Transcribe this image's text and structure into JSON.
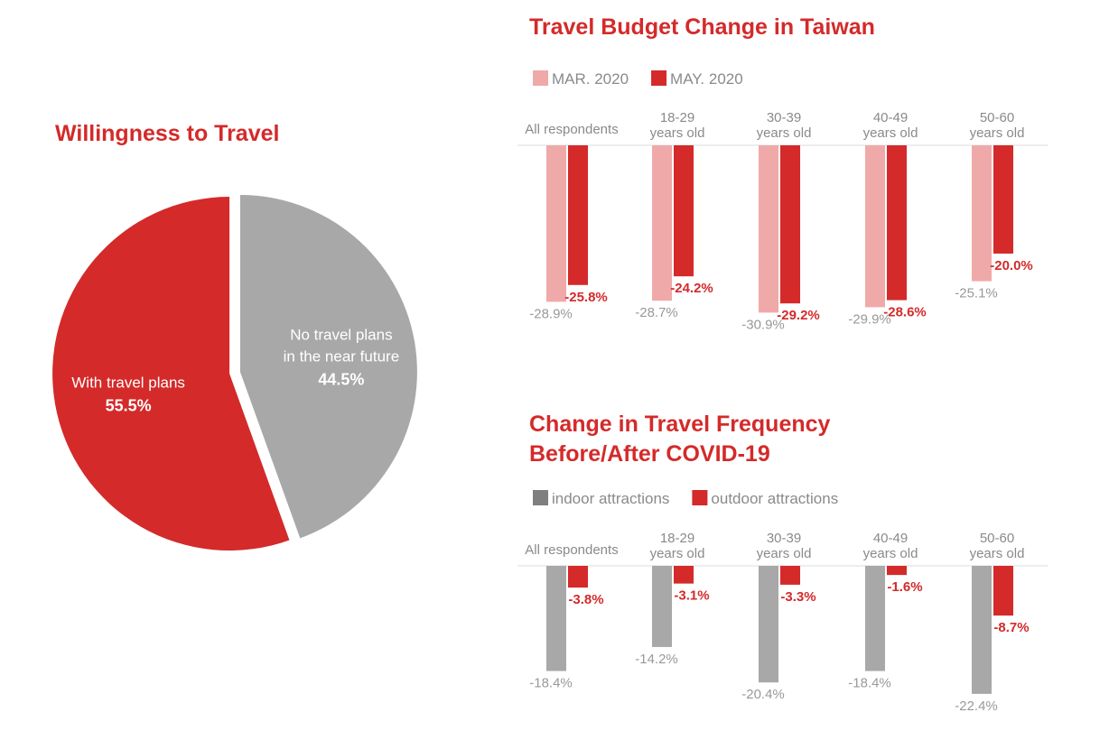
{
  "chart_data": [
    {
      "type": "pie",
      "title": "Willingness to Travel",
      "slices": [
        {
          "name": "No travel plans in the near future",
          "label_lines": [
            "No travel plans",
            "in the near future"
          ],
          "value": 44.5,
          "value_label": "44.5%",
          "color": "#a8a8a8"
        },
        {
          "name": "With travel plans",
          "label_lines": [
            "With travel plans"
          ],
          "value": 55.5,
          "value_label": "55.5%",
          "color": "#d42a2a"
        }
      ]
    },
    {
      "type": "bar",
      "title": "Travel Budget Change in Taiwan",
      "categories": [
        "All respondents",
        "18-29|years old",
        "30-39|years old",
        "40-49|years old",
        "50-60|years old"
      ],
      "series": [
        {
          "name": "MAR. 2020",
          "color": "#f0a9a9",
          "label_color": "#999999",
          "values": [
            -28.9,
            -28.7,
            -30.9,
            -29.9,
            -25.1
          ],
          "labels": [
            "-28.9%",
            "-28.7%",
            "-30.9%",
            "-29.9%",
            "-25.1%"
          ]
        },
        {
          "name": "MAY. 2020",
          "color": "#d42a2a",
          "label_color": "#d42a2a",
          "values": [
            -25.8,
            -24.2,
            -29.2,
            -28.6,
            -20.0
          ],
          "labels": [
            "-25.8%",
            "-24.2%",
            "-29.2%",
            "-28.6%",
            "-20.0%"
          ]
        }
      ],
      "ylim": [
        -32,
        0
      ]
    },
    {
      "type": "bar",
      "title": "Change in Travel Frequency|Before/After COVID-19",
      "categories": [
        "All respondents",
        "18-29|years old",
        "30-39|years old",
        "40-49|years old",
        "50-60|years old"
      ],
      "series": [
        {
          "name": "indoor attractions",
          "color": "#a8a8a8",
          "legend_color": "#7f7f7f",
          "label_color": "#999999",
          "values": [
            -18.4,
            -14.2,
            -20.4,
            -18.4,
            -22.4
          ],
          "labels": [
            "-18.4%",
            "-14.2%",
            "-20.4%",
            "-18.4%",
            "-22.4%"
          ]
        },
        {
          "name": "outdoor attractions",
          "color": "#d42a2a",
          "label_color": "#d42a2a",
          "values": [
            -3.8,
            -3.1,
            -3.3,
            -1.6,
            -8.7
          ],
          "labels": [
            "-3.8%",
            "-3.1%",
            "-3.3%",
            "-1.6%",
            "-8.7%"
          ]
        }
      ],
      "ylim": [
        -24,
        0
      ]
    }
  ]
}
